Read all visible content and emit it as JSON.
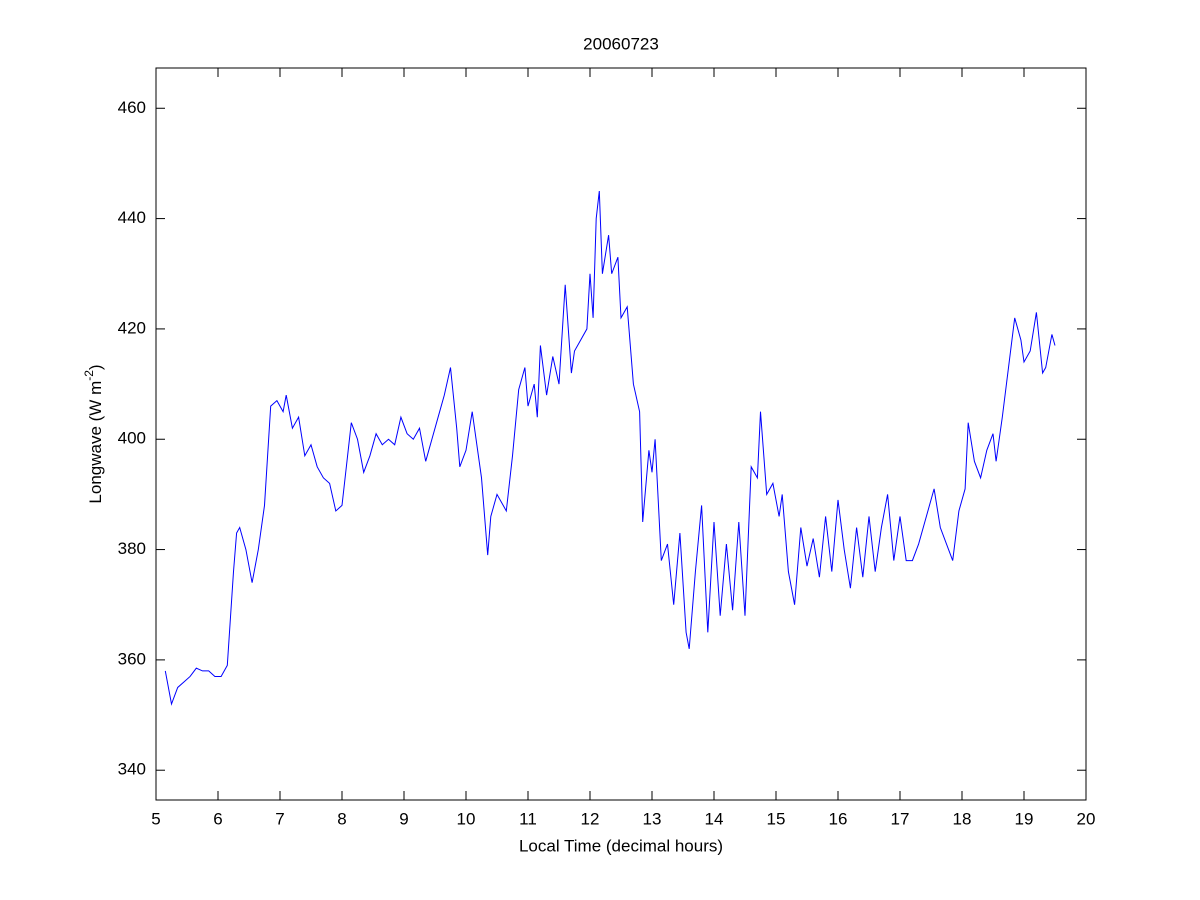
{
  "chart_data": {
    "type": "line",
    "title": "20060723",
    "xlabel": "Local Time (decimal hours)",
    "ylabel": [
      "Longwave (W m",
      "-2",
      ")"
    ],
    "xlim": [
      5,
      20
    ],
    "xticks": [
      5,
      6,
      7,
      8,
      9,
      10,
      11,
      12,
      13,
      14,
      15,
      16,
      17,
      18,
      19,
      20
    ],
    "ylim": [
      334.6,
      467.3
    ],
    "yticks": [
      340,
      360,
      380,
      400,
      420,
      440,
      460
    ],
    "series": [
      {
        "color": "#0000ff",
        "x": [
          5.15,
          5.25,
          5.35,
          5.45,
          5.55,
          5.65,
          5.75,
          5.85,
          5.95,
          6.05,
          6.15,
          6.25,
          6.3,
          6.35,
          6.45,
          6.55,
          6.65,
          6.75,
          6.85,
          6.95,
          7.05,
          7.1,
          7.2,
          7.3,
          7.4,
          7.5,
          7.6,
          7.7,
          7.8,
          7.9,
          8.0,
          8.1,
          8.15,
          8.25,
          8.35,
          8.45,
          8.55,
          8.65,
          8.75,
          8.85,
          8.95,
          9.05,
          9.15,
          9.25,
          9.35,
          9.45,
          9.55,
          9.65,
          9.75,
          9.85,
          9.9,
          10.0,
          10.1,
          10.2,
          10.25,
          10.35,
          10.4,
          10.5,
          10.6,
          10.65,
          10.75,
          10.85,
          10.95,
          11.0,
          11.1,
          11.15,
          11.2,
          11.3,
          11.4,
          11.5,
          11.6,
          11.7,
          11.75,
          11.85,
          11.95,
          12.0,
          12.05,
          12.1,
          12.15,
          12.2,
          12.3,
          12.35,
          12.45,
          12.5,
          12.6,
          12.7,
          12.8,
          12.85,
          12.95,
          13.0,
          13.05,
          13.15,
          13.25,
          13.35,
          13.45,
          13.55,
          13.6,
          13.7,
          13.8,
          13.9,
          14.0,
          14.1,
          14.2,
          14.3,
          14.4,
          14.5,
          14.6,
          14.7,
          14.75,
          14.85,
          14.95,
          15.05,
          15.1,
          15.2,
          15.3,
          15.4,
          15.5,
          15.6,
          15.7,
          15.8,
          15.9,
          16.0,
          16.1,
          16.2,
          16.3,
          16.4,
          16.5,
          16.6,
          16.7,
          16.8,
          16.9,
          17.0,
          17.1,
          17.2,
          17.3,
          17.4,
          17.55,
          17.65,
          17.75,
          17.85,
          17.95,
          18.05,
          18.1,
          18.2,
          18.3,
          18.4,
          18.5,
          18.55,
          18.65,
          18.75,
          18.85,
          18.95,
          19.0,
          19.1,
          19.2,
          19.3,
          19.35,
          19.45,
          19.5
        ],
        "values": [
          358,
          352,
          355,
          356,
          357,
          358.5,
          358,
          358,
          357,
          357,
          359,
          376,
          383,
          384,
          380,
          374,
          380,
          388,
          406,
          407,
          405,
          408,
          402,
          404,
          397,
          399,
          395,
          393,
          392,
          387,
          388,
          398,
          403,
          400,
          394,
          397,
          401,
          399,
          400,
          399,
          404,
          401,
          400,
          402,
          396,
          400,
          404,
          408,
          413,
          402,
          395,
          398,
          405,
          397,
          393,
          379,
          386,
          390,
          388,
          387,
          397,
          409,
          413,
          406,
          410,
          404,
          417,
          408,
          415,
          410,
          428,
          412,
          416,
          418,
          420,
          430,
          422,
          440,
          445,
          430,
          437,
          430,
          433,
          422,
          424,
          410,
          405,
          385,
          398,
          394,
          400,
          378,
          381,
          370,
          383,
          365,
          362,
          376,
          388,
          365,
          385,
          368,
          381,
          369,
          385,
          368,
          395,
          393,
          405,
          390,
          392,
          386,
          390,
          376,
          370,
          384,
          377,
          382,
          375,
          386,
          376,
          389,
          380,
          373,
          384,
          375,
          386,
          376,
          384,
          390,
          378,
          386,
          378,
          378,
          381,
          385,
          391,
          384,
          381,
          378,
          387,
          391,
          403,
          396,
          393,
          398,
          401,
          396,
          404,
          413,
          422,
          418,
          414,
          416,
          423,
          412,
          413,
          419,
          417
        ]
      }
    ]
  }
}
